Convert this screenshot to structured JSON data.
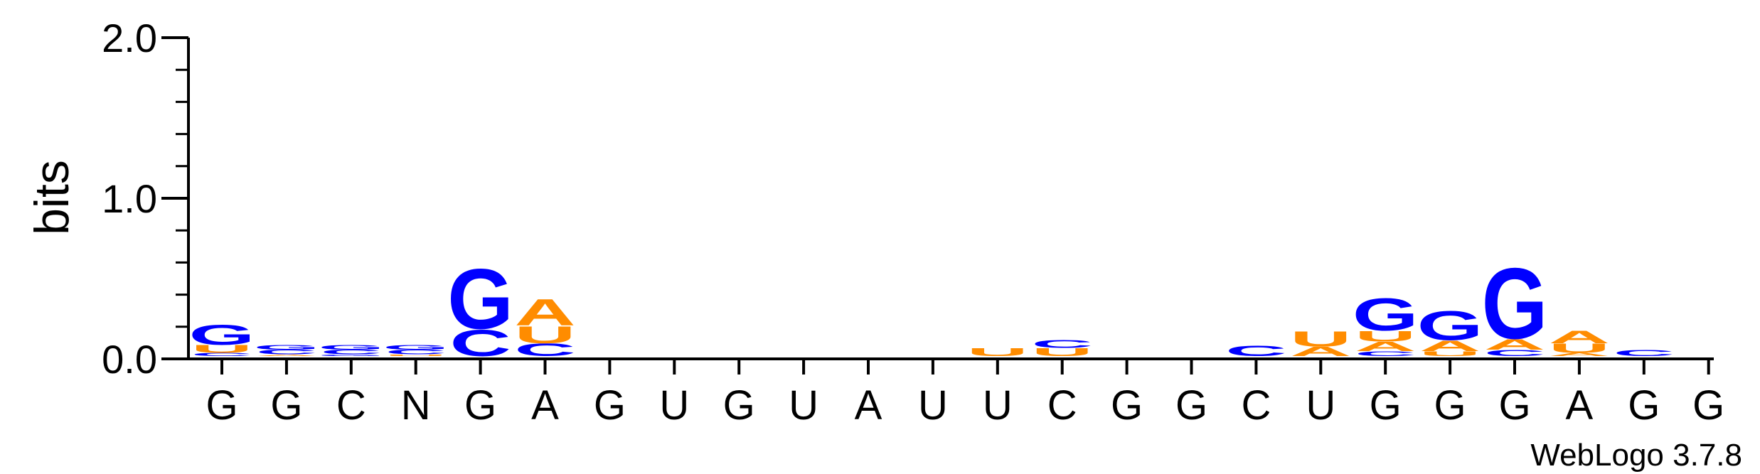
{
  "chart_data": {
    "type": "sequence-logo",
    "ylabel": "bits",
    "ylim": [
      0,
      2.0
    ],
    "yticks": [
      "0.0",
      "1.0",
      "2.0"
    ],
    "categories": [
      "G",
      "G",
      "C",
      "N",
      "G",
      "A",
      "G",
      "U",
      "G",
      "U",
      "A",
      "U",
      "U",
      "C",
      "G",
      "G",
      "C",
      "U",
      "G",
      "G",
      "G",
      "A",
      "G",
      "G"
    ],
    "stacks": [
      [
        {
          "letter": "C",
          "bits": 0.02
        },
        {
          "letter": "U",
          "bits": 0.05
        },
        {
          "letter": "G",
          "bits": 0.13
        }
      ],
      [
        {
          "letter": "A",
          "bits": 0.01
        },
        {
          "letter": "C",
          "bits": 0.03
        },
        {
          "letter": "G",
          "bits": 0.03
        }
      ],
      [
        {
          "letter": "G",
          "bits": 0.01
        },
        {
          "letter": "C",
          "bits": 0.03
        },
        {
          "letter": "G",
          "bits": 0.03
        }
      ],
      [
        {
          "letter": "U",
          "bits": 0.01
        },
        {
          "letter": "C",
          "bits": 0.03
        },
        {
          "letter": "G",
          "bits": 0.03
        }
      ],
      [
        {
          "letter": "C",
          "bits": 0.17
        },
        {
          "letter": "G",
          "bits": 0.39
        }
      ],
      [
        {
          "letter": "C",
          "bits": 0.08
        },
        {
          "letter": "U",
          "bits": 0.11
        },
        {
          "letter": "A",
          "bits": 0.17
        }
      ],
      [
        {
          "letter": "G",
          "bits": 0.0
        }
      ],
      [
        {
          "letter": "U",
          "bits": 0.0
        }
      ],
      [
        {
          "letter": "G",
          "bits": 0.0
        }
      ],
      [
        {
          "letter": "U",
          "bits": 0.0
        }
      ],
      [
        {
          "letter": "A",
          "bits": 0.0
        }
      ],
      [
        {
          "letter": "U",
          "bits": 0.0
        }
      ],
      [
        {
          "letter": "U",
          "bits": 0.05
        }
      ],
      [
        {
          "letter": "U",
          "bits": 0.05
        },
        {
          "letter": "C",
          "bits": 0.05
        }
      ],
      [
        {
          "letter": "G",
          "bits": 0.0
        }
      ],
      [
        {
          "letter": "G",
          "bits": 0.0
        }
      ],
      [
        {
          "letter": "C",
          "bits": 0.07
        }
      ],
      [
        {
          "letter": "A",
          "bits": 0.06
        },
        {
          "letter": "U",
          "bits": 0.1
        }
      ],
      [
        {
          "letter": "C",
          "bits": 0.03
        },
        {
          "letter": "A",
          "bits": 0.06
        },
        {
          "letter": "U",
          "bits": 0.07
        },
        {
          "letter": "G",
          "bits": 0.21
        }
      ],
      [
        {
          "letter": "U",
          "bits": 0.03
        },
        {
          "letter": "A",
          "bits": 0.07
        },
        {
          "letter": "G",
          "bits": 0.19
        }
      ],
      [
        {
          "letter": "C",
          "bits": 0.04
        },
        {
          "letter": "A",
          "bits": 0.07
        },
        {
          "letter": "G",
          "bits": 0.46
        }
      ],
      [
        {
          "letter": "A",
          "bits": 0.02
        },
        {
          "letter": "U",
          "bits": 0.06
        },
        {
          "letter": "A",
          "bits": 0.08
        }
      ],
      [
        {
          "letter": "C",
          "bits": 0.04
        }
      ],
      [
        {
          "letter": "G",
          "bits": 0.0
        }
      ]
    ],
    "colors": {
      "A": "#ff8c00",
      "U": "#ff8c00",
      "G": "#0000ff",
      "C": "#0000ff",
      "axis": "#000000"
    },
    "credit": "WebLogo 3.7.8"
  }
}
